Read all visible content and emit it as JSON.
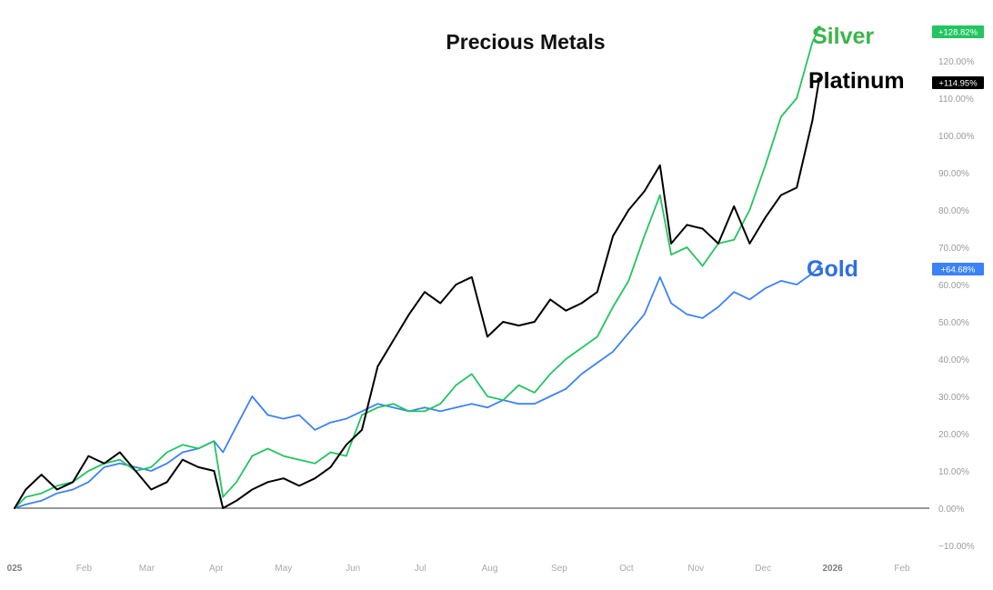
{
  "chart_data": {
    "type": "line",
    "title": "Precious Metals",
    "y_unit": "%",
    "ylim": [
      -10,
      130
    ],
    "y_ticks": [
      "−10.00%",
      "0.00%",
      "10.00%",
      "20.00%",
      "30.00%",
      "40.00%",
      "50.00%",
      "60.00%",
      "70.00%",
      "80.00%",
      "90.00%",
      "100.00%",
      "110.00%",
      "120.00%"
    ],
    "x_ticks": [
      {
        "date": "2025-01-01",
        "label": "025",
        "bold": true
      },
      {
        "date": "2025-02-01",
        "label": "Feb",
        "bold": false
      },
      {
        "date": "2025-03-01",
        "label": "Mar",
        "bold": false
      },
      {
        "date": "2025-04-01",
        "label": "Apr",
        "bold": false
      },
      {
        "date": "2025-05-01",
        "label": "May",
        "bold": false
      },
      {
        "date": "2025-06-01",
        "label": "Jun",
        "bold": false
      },
      {
        "date": "2025-07-01",
        "label": "Jul",
        "bold": false
      },
      {
        "date": "2025-08-01",
        "label": "Aug",
        "bold": false
      },
      {
        "date": "2025-09-01",
        "label": "Sep",
        "bold": false
      },
      {
        "date": "2025-10-01",
        "label": "Oct",
        "bold": false
      },
      {
        "date": "2025-11-01",
        "label": "Nov",
        "bold": false
      },
      {
        "date": "2025-12-01",
        "label": "Dec",
        "bold": false
      },
      {
        "date": "2026-01-01",
        "label": "2026",
        "bold": true
      },
      {
        "date": "2026-02-01",
        "label": "Feb",
        "bold": false
      }
    ],
    "grid": false,
    "zero_line": true,
    "series": [
      {
        "name": "Silver",
        "color": "#22c55e",
        "label_color": "#3bb54a",
        "last_value_label": "+128.82%",
        "points": [
          [
            "2025-01-01",
            0
          ],
          [
            "2025-01-06",
            3
          ],
          [
            "2025-01-13",
            4
          ],
          [
            "2025-01-20",
            6
          ],
          [
            "2025-01-27",
            7
          ],
          [
            "2025-02-03",
            10
          ],
          [
            "2025-02-10",
            12
          ],
          [
            "2025-02-17",
            13
          ],
          [
            "2025-02-24",
            10
          ],
          [
            "2025-03-03",
            11
          ],
          [
            "2025-03-10",
            15
          ],
          [
            "2025-03-17",
            17
          ],
          [
            "2025-03-24",
            16
          ],
          [
            "2025-03-31",
            18
          ],
          [
            "2025-04-04",
            3
          ],
          [
            "2025-04-10",
            7
          ],
          [
            "2025-04-17",
            14
          ],
          [
            "2025-04-24",
            16
          ],
          [
            "2025-05-01",
            14
          ],
          [
            "2025-05-08",
            13
          ],
          [
            "2025-05-15",
            12
          ],
          [
            "2025-05-22",
            15
          ],
          [
            "2025-05-29",
            14
          ],
          [
            "2025-06-05",
            25
          ],
          [
            "2025-06-12",
            27
          ],
          [
            "2025-06-19",
            28
          ],
          [
            "2025-06-26",
            26
          ],
          [
            "2025-07-03",
            26
          ],
          [
            "2025-07-10",
            28
          ],
          [
            "2025-07-17",
            33
          ],
          [
            "2025-07-24",
            36
          ],
          [
            "2025-07-31",
            30
          ],
          [
            "2025-08-07",
            29
          ],
          [
            "2025-08-14",
            33
          ],
          [
            "2025-08-21",
            31
          ],
          [
            "2025-08-28",
            36
          ],
          [
            "2025-09-04",
            40
          ],
          [
            "2025-09-11",
            43
          ],
          [
            "2025-09-18",
            46
          ],
          [
            "2025-09-25",
            54
          ],
          [
            "2025-10-02",
            61
          ],
          [
            "2025-10-09",
            73
          ],
          [
            "2025-10-16",
            84
          ],
          [
            "2025-10-21",
            68
          ],
          [
            "2025-10-28",
            70
          ],
          [
            "2025-11-04",
            65
          ],
          [
            "2025-11-11",
            71
          ],
          [
            "2025-11-18",
            72
          ],
          [
            "2025-11-25",
            80
          ],
          [
            "2025-12-02",
            92
          ],
          [
            "2025-12-09",
            105
          ],
          [
            "2025-12-16",
            110
          ],
          [
            "2025-12-23",
            125
          ],
          [
            "2025-12-26",
            128.82
          ]
        ]
      },
      {
        "name": "Platinum",
        "color": "#000000",
        "label_color": "#000000",
        "last_value_label": "+114.95%",
        "points": [
          [
            "2025-01-01",
            0
          ],
          [
            "2025-01-06",
            5
          ],
          [
            "2025-01-13",
            9
          ],
          [
            "2025-01-20",
            5
          ],
          [
            "2025-01-27",
            7
          ],
          [
            "2025-02-03",
            14
          ],
          [
            "2025-02-10",
            12
          ],
          [
            "2025-02-17",
            15
          ],
          [
            "2025-02-24",
            10
          ],
          [
            "2025-03-03",
            5
          ],
          [
            "2025-03-10",
            7
          ],
          [
            "2025-03-17",
            13
          ],
          [
            "2025-03-24",
            11
          ],
          [
            "2025-03-31",
            10
          ],
          [
            "2025-04-04",
            0
          ],
          [
            "2025-04-10",
            2
          ],
          [
            "2025-04-17",
            5
          ],
          [
            "2025-04-24",
            7
          ],
          [
            "2025-05-01",
            8
          ],
          [
            "2025-05-08",
            6
          ],
          [
            "2025-05-15",
            8
          ],
          [
            "2025-05-22",
            11
          ],
          [
            "2025-05-29",
            17
          ],
          [
            "2025-06-05",
            21
          ],
          [
            "2025-06-12",
            38
          ],
          [
            "2025-06-19",
            45
          ],
          [
            "2025-06-26",
            52
          ],
          [
            "2025-07-03",
            58
          ],
          [
            "2025-07-10",
            55
          ],
          [
            "2025-07-17",
            60
          ],
          [
            "2025-07-24",
            62
          ],
          [
            "2025-07-31",
            46
          ],
          [
            "2025-08-07",
            50
          ],
          [
            "2025-08-14",
            49
          ],
          [
            "2025-08-21",
            50
          ],
          [
            "2025-08-28",
            56
          ],
          [
            "2025-09-04",
            53
          ],
          [
            "2025-09-11",
            55
          ],
          [
            "2025-09-18",
            58
          ],
          [
            "2025-09-25",
            73
          ],
          [
            "2025-10-02",
            80
          ],
          [
            "2025-10-09",
            85
          ],
          [
            "2025-10-16",
            92
          ],
          [
            "2025-10-21",
            71
          ],
          [
            "2025-10-28",
            76
          ],
          [
            "2025-11-04",
            75
          ],
          [
            "2025-11-11",
            71
          ],
          [
            "2025-11-18",
            81
          ],
          [
            "2025-11-25",
            71
          ],
          [
            "2025-12-02",
            78
          ],
          [
            "2025-12-09",
            84
          ],
          [
            "2025-12-16",
            86
          ],
          [
            "2025-12-23",
            104
          ],
          [
            "2025-12-26",
            114.95
          ]
        ]
      },
      {
        "name": "Gold",
        "color": "#3b82f6",
        "label_color": "#2f6fe0",
        "last_value_label": "+64.68%",
        "points": [
          [
            "2025-01-01",
            0
          ],
          [
            "2025-01-06",
            1
          ],
          [
            "2025-01-13",
            2
          ],
          [
            "2025-01-20",
            4
          ],
          [
            "2025-01-27",
            5
          ],
          [
            "2025-02-03",
            7
          ],
          [
            "2025-02-10",
            11
          ],
          [
            "2025-02-17",
            12
          ],
          [
            "2025-02-24",
            11
          ],
          [
            "2025-03-03",
            10
          ],
          [
            "2025-03-10",
            12
          ],
          [
            "2025-03-17",
            15
          ],
          [
            "2025-03-24",
            16
          ],
          [
            "2025-03-31",
            18
          ],
          [
            "2025-04-04",
            15
          ],
          [
            "2025-04-10",
            22
          ],
          [
            "2025-04-17",
            30
          ],
          [
            "2025-04-24",
            25
          ],
          [
            "2025-05-01",
            24
          ],
          [
            "2025-05-08",
            25
          ],
          [
            "2025-05-15",
            21
          ],
          [
            "2025-05-22",
            23
          ],
          [
            "2025-05-29",
            24
          ],
          [
            "2025-06-05",
            26
          ],
          [
            "2025-06-12",
            28
          ],
          [
            "2025-06-19",
            27
          ],
          [
            "2025-06-26",
            26
          ],
          [
            "2025-07-03",
            27
          ],
          [
            "2025-07-10",
            26
          ],
          [
            "2025-07-17",
            27
          ],
          [
            "2025-07-24",
            28
          ],
          [
            "2025-07-31",
            27
          ],
          [
            "2025-08-07",
            29
          ],
          [
            "2025-08-14",
            28
          ],
          [
            "2025-08-21",
            28
          ],
          [
            "2025-08-28",
            30
          ],
          [
            "2025-09-04",
            32
          ],
          [
            "2025-09-11",
            36
          ],
          [
            "2025-09-18",
            39
          ],
          [
            "2025-09-25",
            42
          ],
          [
            "2025-10-02",
            47
          ],
          [
            "2025-10-09",
            52
          ],
          [
            "2025-10-16",
            62
          ],
          [
            "2025-10-21",
            55
          ],
          [
            "2025-10-28",
            52
          ],
          [
            "2025-11-04",
            51
          ],
          [
            "2025-11-11",
            54
          ],
          [
            "2025-11-18",
            58
          ],
          [
            "2025-11-25",
            56
          ],
          [
            "2025-12-02",
            59
          ],
          [
            "2025-12-09",
            61
          ],
          [
            "2025-12-16",
            60
          ],
          [
            "2025-12-23",
            63
          ],
          [
            "2025-12-26",
            64.68
          ]
        ]
      }
    ]
  }
}
